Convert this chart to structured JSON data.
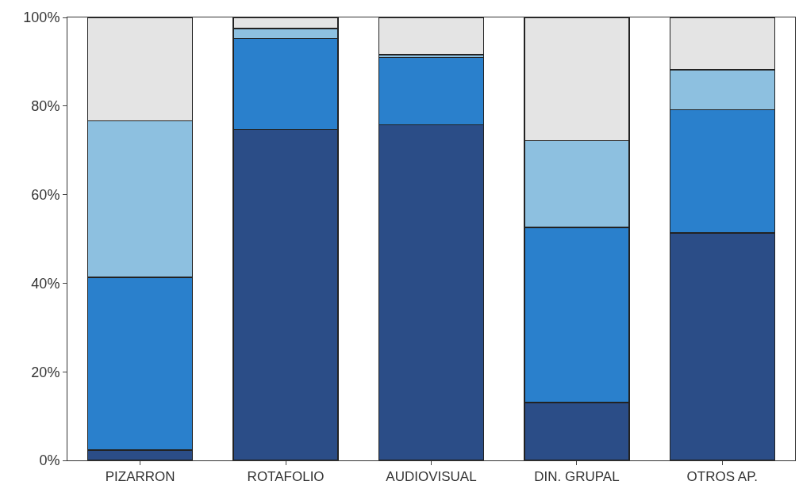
{
  "chart_data": {
    "type": "bar",
    "stacked": true,
    "categories": [
      "PIZARRON",
      "ROTAFOLIO",
      "AUDIOVISUAL",
      "DIN. GRUPAL",
      "OTROS AP."
    ],
    "series": [
      {
        "color": "#2b4d87",
        "values": [
          2.3,
          74.7,
          75.8,
          13.1,
          51.3
        ]
      },
      {
        "color": "#2a80cc",
        "values": [
          39,
          20.6,
          15.2,
          39.5,
          27.9
        ]
      },
      {
        "color": "#8dc0e0",
        "values": [
          35.4,
          2.2,
          0.6,
          19.6,
          9.0
        ]
      },
      {
        "color": "#e4e4e4",
        "values": [
          23.3,
          2.5,
          8.4,
          27.8,
          11.8
        ]
      }
    ],
    "ylim": [
      0,
      100
    ],
    "yticks": [
      {
        "value": 0,
        "label": "0%"
      },
      {
        "value": 20,
        "label": "20%"
      },
      {
        "value": 40,
        "label": "40%"
      },
      {
        "value": 60,
        "label": "60%"
      },
      {
        "value": 80,
        "label": "80%"
      },
      {
        "value": 100,
        "label": "100%"
      }
    ],
    "tick_labels": "xy"
  }
}
